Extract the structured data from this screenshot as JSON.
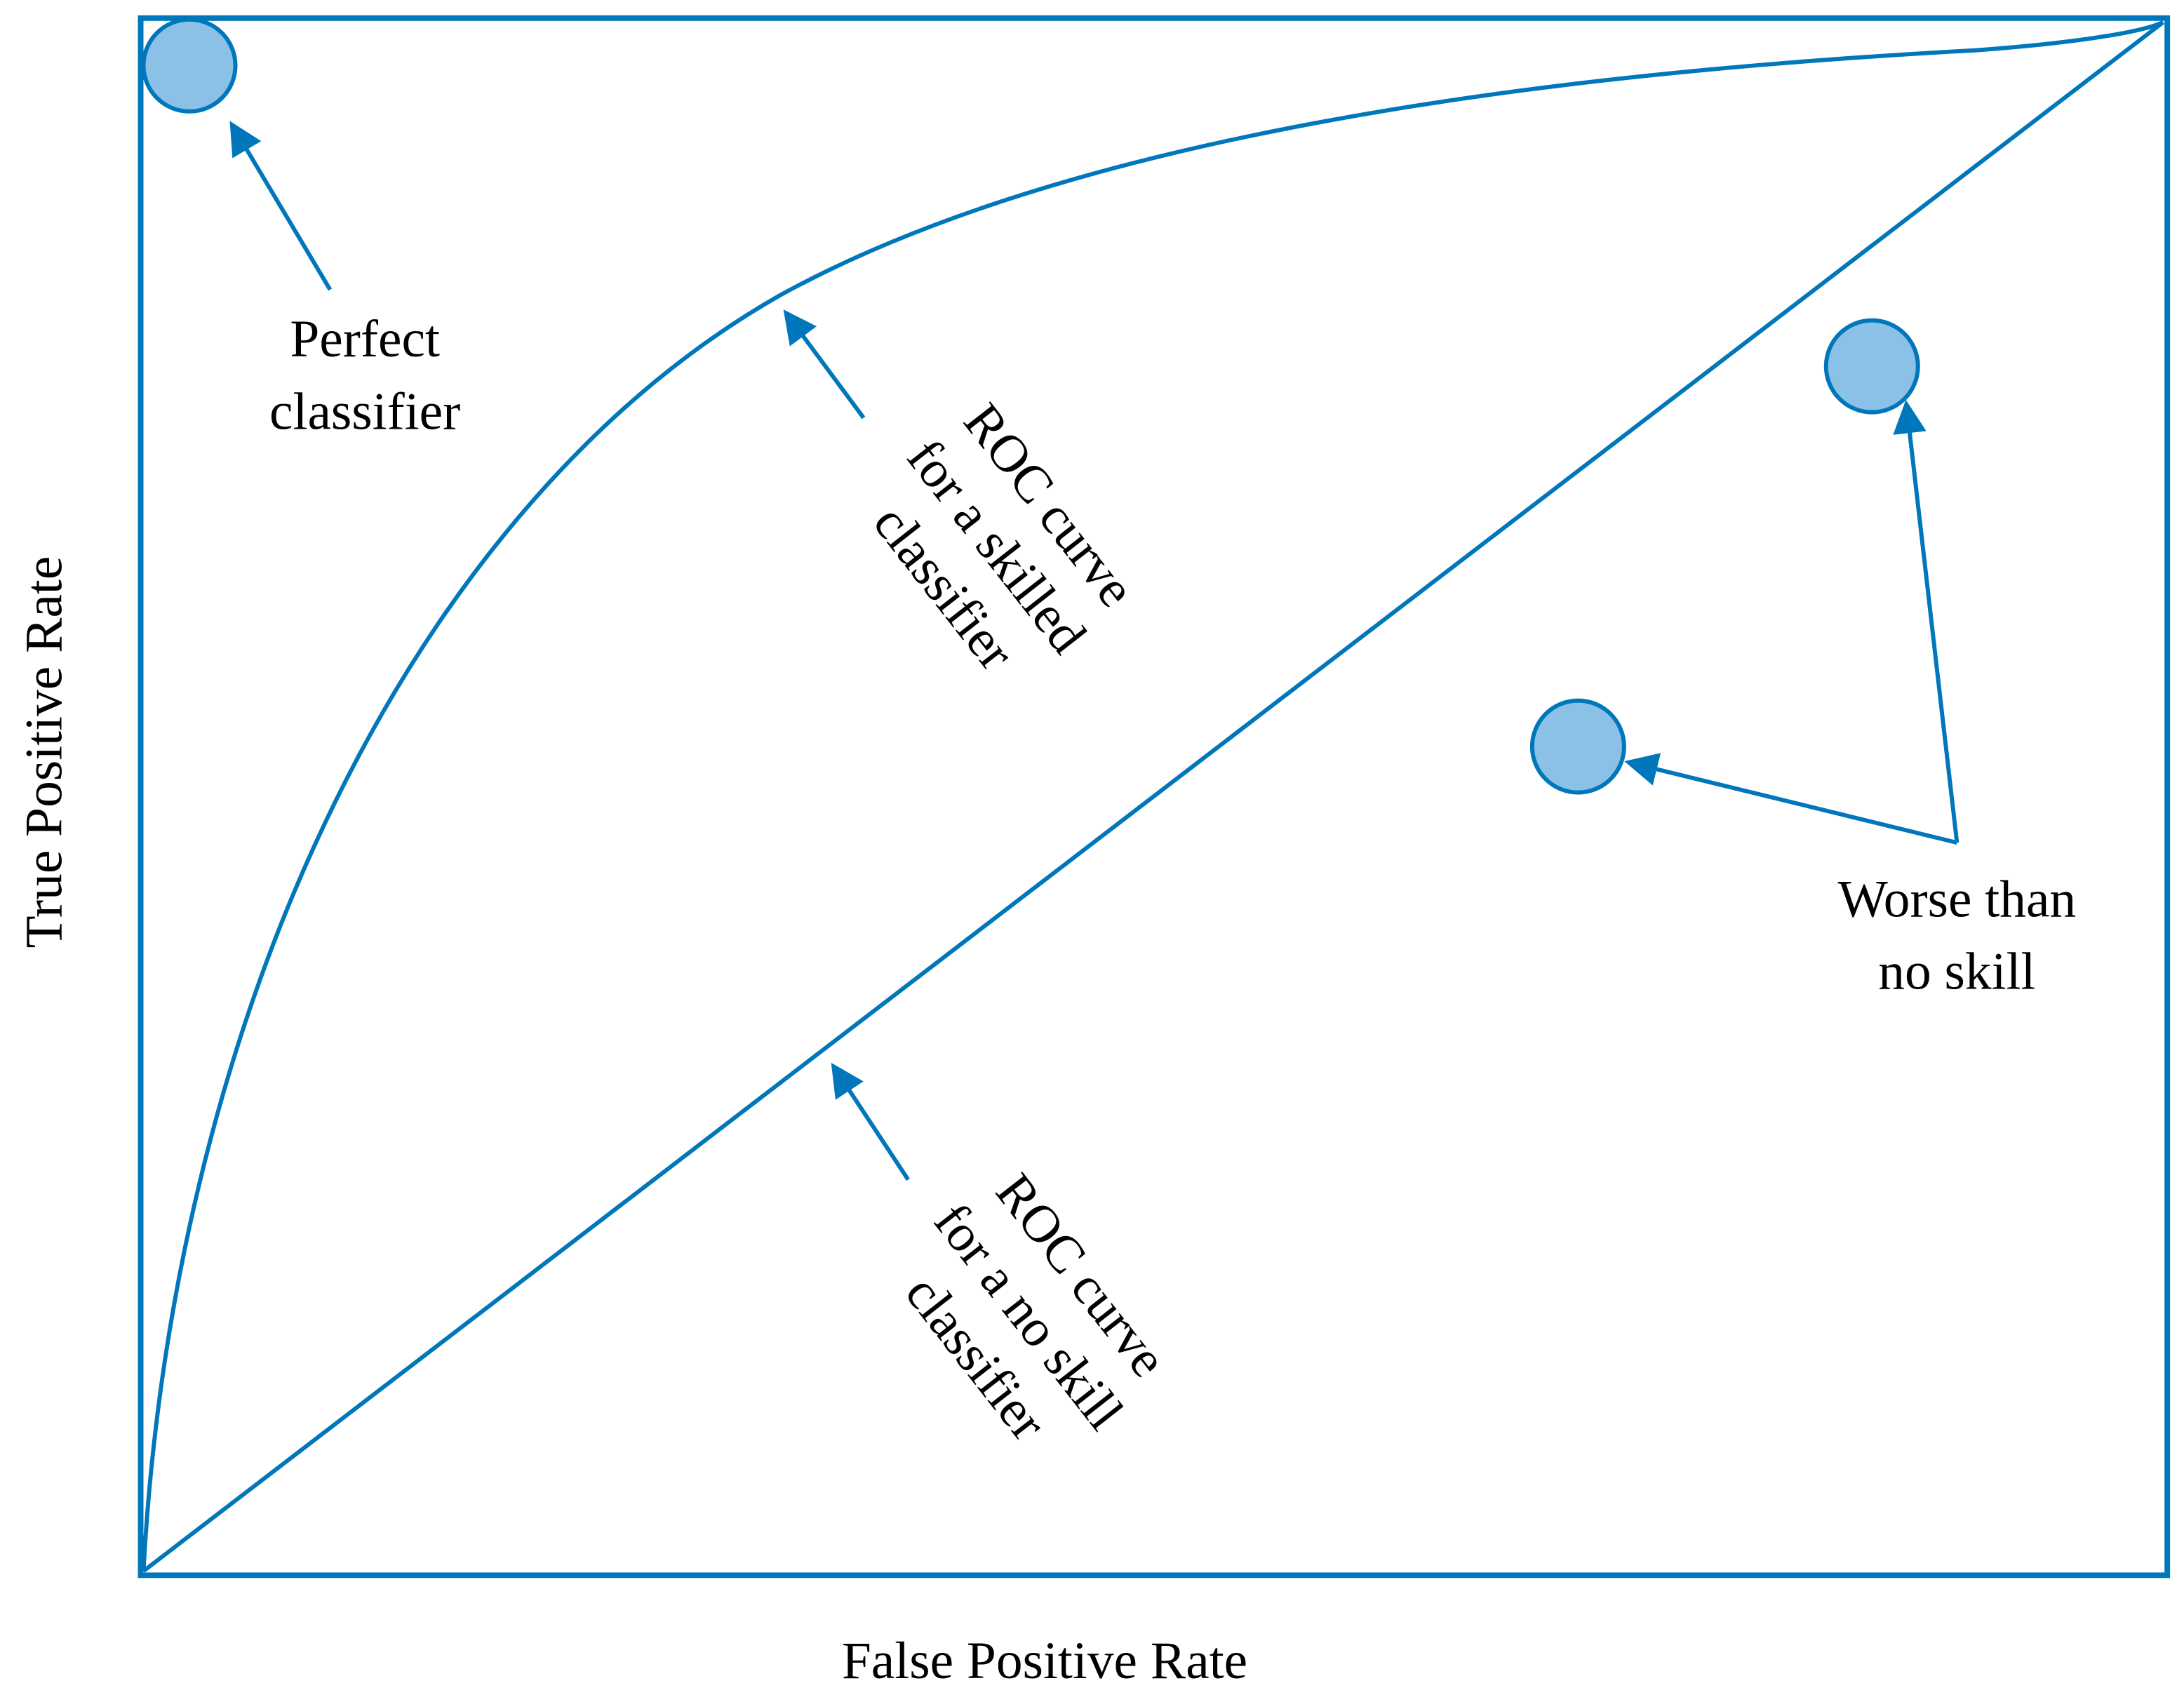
{
  "axes": {
    "xlabel": "False Positive Rate",
    "ylabel": "True Positive Rate"
  },
  "annotations": {
    "perfect": [
      "Perfect",
      "classifier"
    ],
    "skilled": [
      "ROC curve",
      "for a skilled",
      "classifier"
    ],
    "no_skill": [
      "ROC curve",
      "for a no skill",
      "classifier"
    ],
    "worse": [
      "Worse than",
      "no skill"
    ]
  },
  "colors": {
    "line": "#0077bb",
    "marker_fill": "#8bc1e6"
  }
}
